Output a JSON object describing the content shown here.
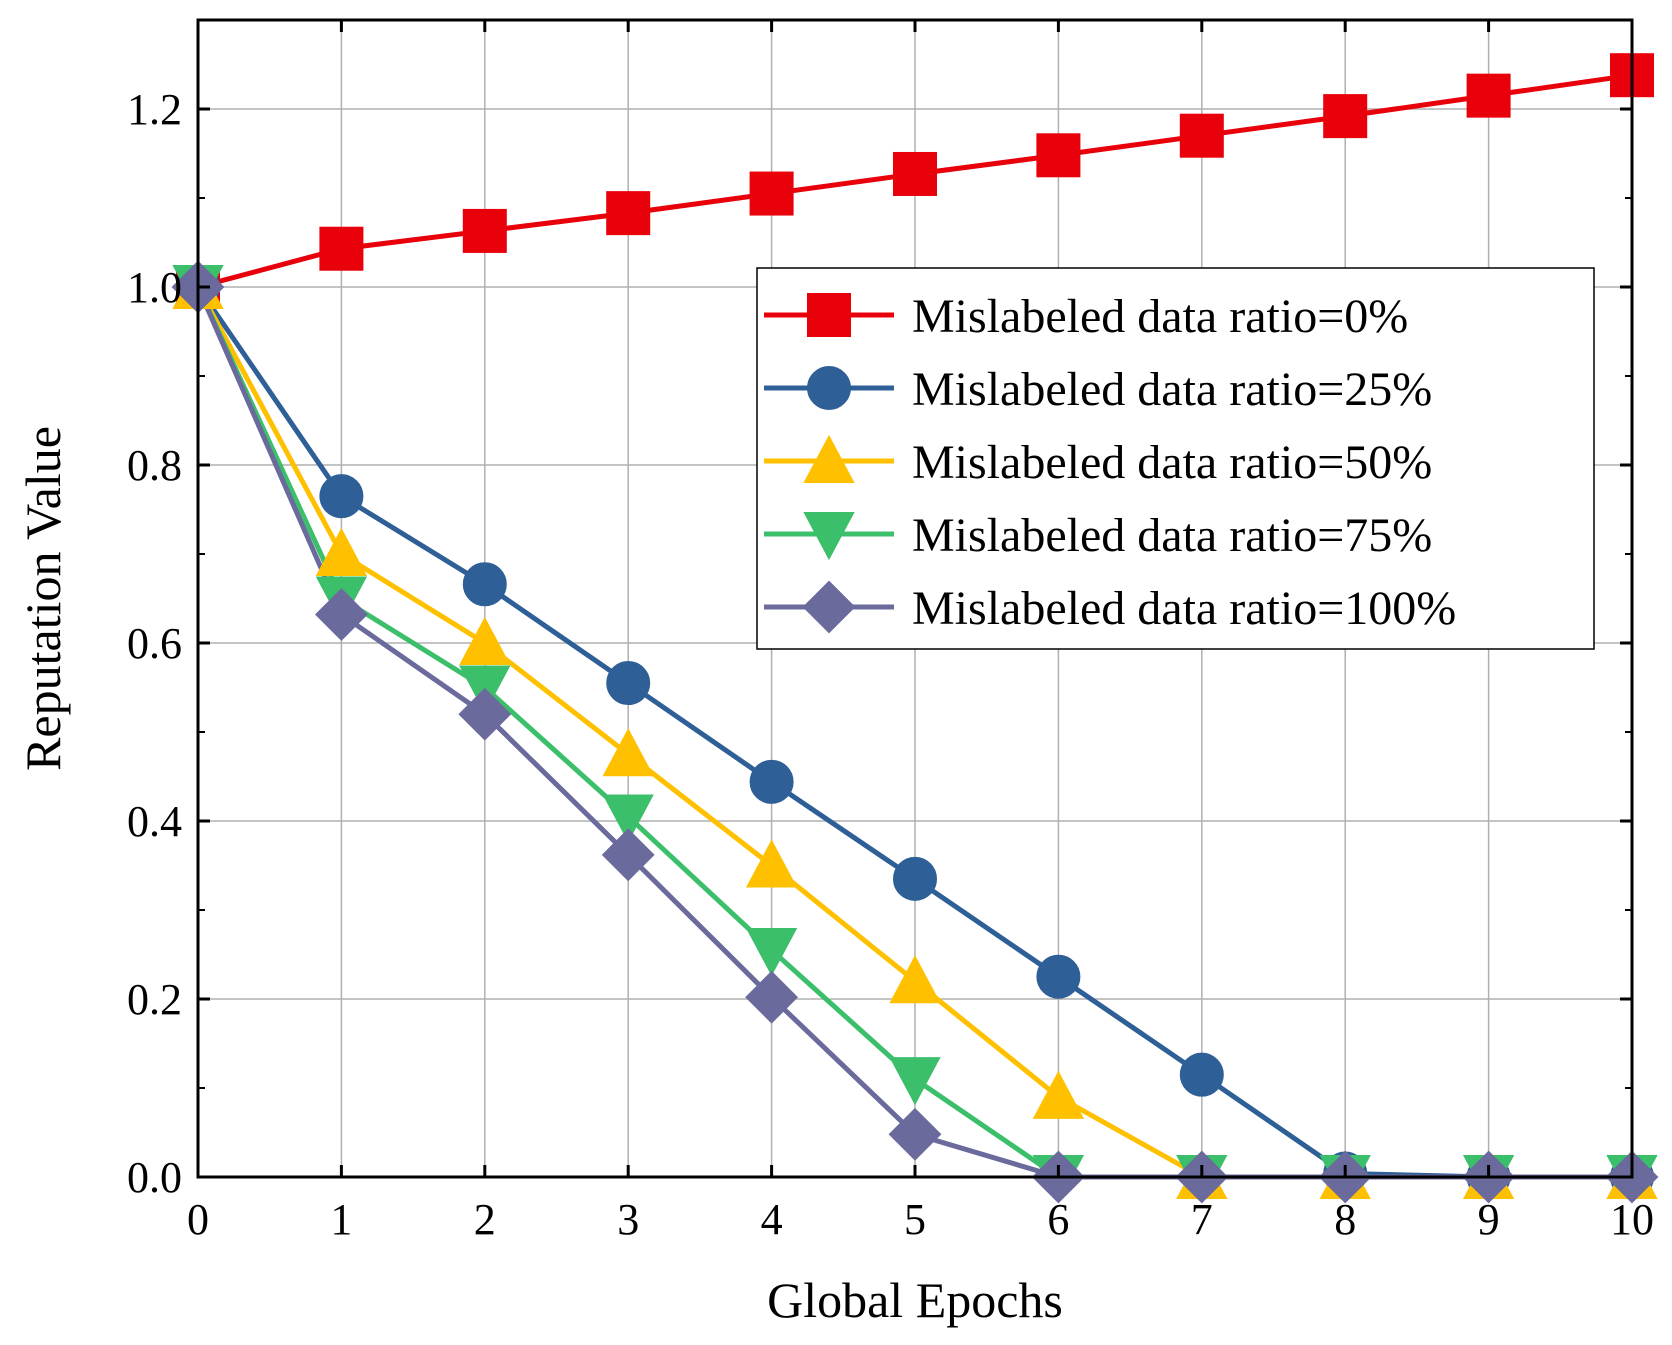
{
  "chart_data": {
    "type": "line",
    "title": "",
    "xlabel": "Global Epochs",
    "ylabel": "Reputation Value",
    "x": [
      0,
      1,
      2,
      3,
      4,
      5,
      6,
      7,
      8,
      9,
      10
    ],
    "xlim": [
      0,
      10
    ],
    "ylim": [
      0,
      1.3
    ],
    "xticks": [
      "0",
      "1",
      "2",
      "3",
      "4",
      "5",
      "6",
      "7",
      "8",
      "9",
      "10"
    ],
    "yticks": [
      {
        "value": 0.0,
        "label": "0.0"
      },
      {
        "value": 0.2,
        "label": "0.2"
      },
      {
        "value": 0.4,
        "label": "0.4"
      },
      {
        "value": 0.6,
        "label": "0.6"
      },
      {
        "value": 0.8,
        "label": "0.8"
      },
      {
        "value": 1.0,
        "label": "1.0"
      },
      {
        "value": 1.2,
        "label": "1.2"
      }
    ],
    "grid": true,
    "legend_position": "upper-right",
    "series": [
      {
        "name": "Mislabeled data ratio=0%",
        "color": "#e8000b",
        "marker": "square",
        "values": [
          1.0,
          1.043,
          1.063,
          1.083,
          1.105,
          1.127,
          1.148,
          1.17,
          1.192,
          1.215,
          1.238
        ]
      },
      {
        "name": "Mislabeled data ratio=25%",
        "color": "#2e5f96",
        "marker": "circle",
        "values": [
          1.0,
          0.765,
          0.666,
          0.555,
          0.444,
          0.335,
          0.225,
          0.115,
          0.004,
          0.0,
          0.0
        ]
      },
      {
        "name": "Mislabeled data ratio=50%",
        "color": "#ffc000",
        "marker": "triangle-up",
        "values": [
          1.0,
          0.7,
          0.6,
          0.475,
          0.35,
          0.22,
          0.09,
          0.0,
          0.0,
          0.0,
          0.0
        ]
      },
      {
        "name": "Mislabeled data ratio=75%",
        "color": "#3cbf6b",
        "marker": "triangle-down",
        "values": [
          1.0,
          0.65,
          0.55,
          0.405,
          0.255,
          0.11,
          0.0,
          0.0,
          0.0,
          0.0,
          0.0
        ]
      },
      {
        "name": "Mislabeled data ratio=100%",
        "color": "#6a6a9c",
        "marker": "diamond",
        "values": [
          1.0,
          0.632,
          0.52,
          0.362,
          0.202,
          0.048,
          0.0,
          0.0,
          0.0,
          0.0,
          0.0
        ]
      }
    ]
  }
}
